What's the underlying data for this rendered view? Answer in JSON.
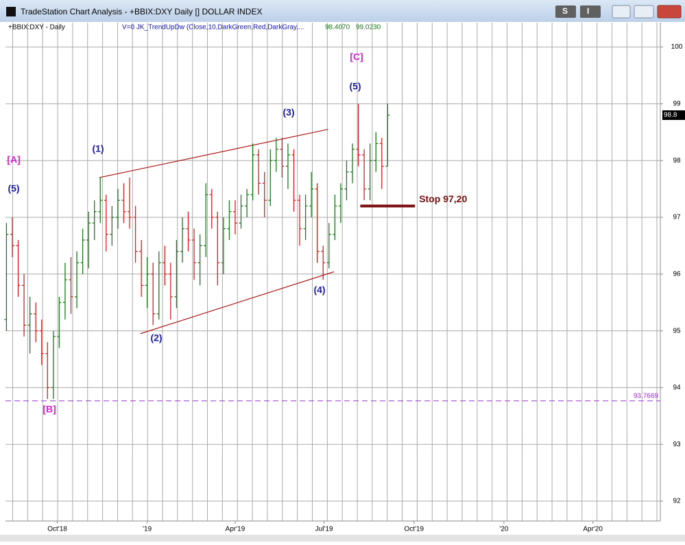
{
  "window": {
    "title": "TradeStation Chart Analysis - +BBIX:DXY Daily [] DOLLAR INDEX",
    "buttons": [
      "S",
      "I"
    ]
  },
  "chart_data": {
    "type": "ohlc",
    "symbol": "+BBIX:DXY - Daily",
    "indicator": {
      "label": "V=0  JK_TrendUpDw (Close,10,DarkGreen,Red,DarkGray,...",
      "values": [
        "98.4070",
        "99.0230"
      ]
    },
    "up_color": "#1a7a1a",
    "down_color": "#d42020",
    "x": [
      -52,
      -46,
      -40,
      -34,
      -28,
      -22,
      -16,
      -10,
      -4,
      2,
      8,
      14,
      20,
      26,
      32,
      38,
      44,
      50,
      56,
      62,
      68,
      74,
      80,
      86,
      92,
      98,
      104,
      110,
      116,
      122,
      128,
      134,
      140,
      146,
      152,
      158,
      164,
      170,
      176,
      182,
      188,
      194,
      200,
      206,
      212,
      218,
      224,
      230,
      236,
      242,
      248,
      254,
      260,
      266,
      272,
      278,
      284,
      290,
      296,
      302,
      308,
      314,
      320,
      326,
      332,
      338
    ],
    "open": [
      95.2,
      96.7,
      96.5,
      95.8,
      95.1,
      95.3,
      95.0,
      94.6,
      94.0,
      94.9,
      95.5,
      95.9,
      95.6,
      96.2,
      96.6,
      96.9,
      97.1,
      97.3,
      96.7,
      97.0,
      97.3,
      97.1,
      97.0,
      96.4,
      95.8,
      96.0,
      95.3,
      96.2,
      96.0,
      95.6,
      96.4,
      96.8,
      96.6,
      96.2,
      96.5,
      97.4,
      97.0,
      96.2,
      96.8,
      97.1,
      96.9,
      97.2,
      97.4,
      98.1,
      97.6,
      97.3,
      98.0,
      98.2,
      97.9,
      98.1,
      97.3,
      96.8,
      97.2,
      97.5,
      96.4,
      96.2,
      96.7,
      97.2,
      97.5,
      97.8,
      98.2,
      98.1,
      97.5,
      98.0,
      98.3,
      97.9
    ],
    "high": [
      96.9,
      97.0,
      96.6,
      96.0,
      95.6,
      95.5,
      95.2,
      94.8,
      95.0,
      95.6,
      96.2,
      96.3,
      96.4,
      96.8,
      97.1,
      97.3,
      97.7,
      97.4,
      97.2,
      97.5,
      97.6,
      97.7,
      97.2,
      96.6,
      96.3,
      96.2,
      96.4,
      96.5,
      96.2,
      96.6,
      97.0,
      97.1,
      96.8,
      96.7,
      97.6,
      97.5,
      97.1,
      97.0,
      97.3,
      97.3,
      97.4,
      97.5,
      98.3,
      98.2,
      97.8,
      98.2,
      98.4,
      98.4,
      98.3,
      98.2,
      97.4,
      97.4,
      97.8,
      97.6,
      96.5,
      96.9,
      97.4,
      97.6,
      98.0,
      98.3,
      99.0,
      98.2,
      98.3,
      98.5,
      98.4,
      99.0
    ],
    "low": [
      95.0,
      96.3,
      95.6,
      94.9,
      94.6,
      94.8,
      94.4,
      93.8,
      93.8,
      94.7,
      95.2,
      95.3,
      95.4,
      96.0,
      96.1,
      96.6,
      96.9,
      96.4,
      96.5,
      96.8,
      96.9,
      96.8,
      96.2,
      95.6,
      95.4,
      95.1,
      95.2,
      95.8,
      95.2,
      95.4,
      96.2,
      96.4,
      95.9,
      95.8,
      96.3,
      96.8,
      95.8,
      96.0,
      96.6,
      96.7,
      96.8,
      97.0,
      97.3,
      97.4,
      97.0,
      97.2,
      97.8,
      97.7,
      97.5,
      97.1,
      96.5,
      96.6,
      97.0,
      96.2,
      95.9,
      96.1,
      96.6,
      96.9,
      97.3,
      97.6,
      97.9,
      97.3,
      97.3,
      97.8,
      97.5,
      97.9
    ],
    "close": [
      96.7,
      96.5,
      95.8,
      95.1,
      95.3,
      95.0,
      94.6,
      94.0,
      94.9,
      95.5,
      95.9,
      95.6,
      96.2,
      96.6,
      96.9,
      97.1,
      97.3,
      96.7,
      97.0,
      97.3,
      97.1,
      97.0,
      96.4,
      95.8,
      96.0,
      95.3,
      96.2,
      96.0,
      95.6,
      96.4,
      96.8,
      96.6,
      96.2,
      96.5,
      97.4,
      97.0,
      96.2,
      96.8,
      97.1,
      96.9,
      97.2,
      97.4,
      98.1,
      97.6,
      97.3,
      98.0,
      98.2,
      97.9,
      98.1,
      97.3,
      96.8,
      97.2,
      97.5,
      96.4,
      96.2,
      96.7,
      97.2,
      97.5,
      97.8,
      98.2,
      98.1,
      97.5,
      98.0,
      98.3,
      97.9,
      98.8
    ],
    "xlim": [
      -53,
      617
    ],
    "ylim": [
      91.65,
      100.43
    ],
    "xticks": [
      {
        "value": 0,
        "label": "Oct'18"
      },
      {
        "value": 92,
        "label": "'19"
      },
      {
        "value": 182,
        "label": "Apr'19"
      },
      {
        "value": 273,
        "label": "Jul'19"
      },
      {
        "value": 365,
        "label": "Oct'19"
      },
      {
        "value": 457,
        "label": "'20"
      },
      {
        "value": 548,
        "label": "Apr'20"
      }
    ],
    "yticks": [
      92,
      93,
      94,
      95,
      96,
      97,
      98,
      99,
      100
    ],
    "grid": true,
    "last_price": 98.8,
    "support": 93.7669,
    "stop": {
      "value": 97.2,
      "label": "Stop 97,20",
      "x": [
        310,
        366
      ]
    },
    "trendlines": [
      {
        "x": [
          43,
          277
        ],
        "y": [
          97.7,
          98.55
        ]
      },
      {
        "x": [
          85,
          283
        ],
        "y": [
          94.95,
          96.04
        ]
      }
    ],
    "annotations": [
      "[A]",
      "(5)",
      "(1)",
      "(2)",
      "(3)",
      "(4)",
      "(5)",
      "[C]",
      "[B]"
    ]
  }
}
